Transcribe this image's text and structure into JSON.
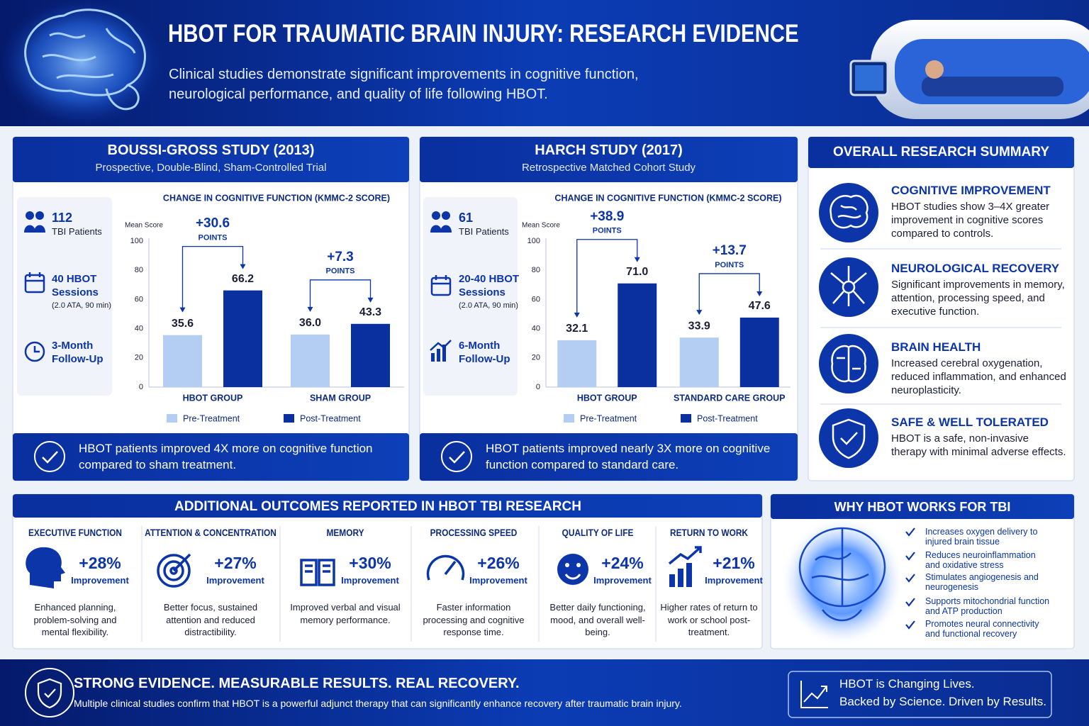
{
  "header": {
    "title": "HBOT FOR TRAUMATIC BRAIN INJURY: RESEARCH EVIDENCE",
    "subtitle": [
      "Clinical studies demonstrate significant improvements in cognitive function,",
      "neurological performance, and quality of life following HBOT."
    ]
  },
  "studies": [
    {
      "title": "BOUSSI-GROSS STUDY (2013)",
      "subtitle": "Prospective, Double-Blind, Sham-Controlled Trial",
      "facts": [
        {
          "main": "112",
          "sub": "TBI Patients"
        },
        {
          "main": "40 HBOT Sessions",
          "sub": "(2.0 ATA, 90 min)"
        },
        {
          "main": "3-Month Follow-Up"
        }
      ],
      "conclusion": "HBOT patients improved 4X more on cognitive function compared to sham treatment."
    },
    {
      "title": "HARCH STUDY (2017)",
      "subtitle": "Retrospective Matched Cohort Study",
      "facts": [
        {
          "main": "61",
          "sub": "TBI Patients"
        },
        {
          "main": "20-40 HBOT Sessions",
          "sub": "(2.0 ATA, 90 min)"
        },
        {
          "main": "6-Month Follow-Up"
        }
      ],
      "conclusion": "HBOT patients improved nearly 3X more on cognitive function compared to standard care."
    }
  ],
  "chart_data": [
    {
      "type": "bar",
      "title": "CHANGE IN COGNITIVE FUNCTION (KMMC-2 SCORE)",
      "y_label": "Mean Score",
      "categories": [
        "HBOT GROUP",
        "SHAM GROUP"
      ],
      "series": [
        {
          "name": "Pre-Treatment",
          "color": "#b4cdf2",
          "values": [
            35.6,
            36.0
          ],
          "value_labels": [
            "35.6",
            "36.0"
          ]
        },
        {
          "name": "Post-Treatment",
          "color": "#0a2f9e",
          "values": [
            66.2,
            43.3
          ],
          "value_labels": [
            "66.2",
            "43.3"
          ]
        }
      ],
      "annotations": [
        {
          "label": "+30.6",
          "text": "POINTS"
        },
        {
          "label": "+7.3",
          "text": "POINTS"
        }
      ],
      "ylim": [
        0,
        100
      ],
      "yticks": [
        0,
        20,
        40,
        60,
        80,
        100
      ],
      "grid": false
    },
    {
      "type": "bar",
      "title": "CHANGE IN COGNITIVE FUNCTION (KMMC-2 SCORE)",
      "y_label": "Mean Score",
      "categories": [
        "HBOT GROUP",
        "STANDARD CARE GROUP"
      ],
      "series": [
        {
          "name": "Pre-Treatment",
          "color": "#b4cdf2",
          "values": [
            32.1,
            33.9
          ],
          "value_labels": [
            "32.1",
            "33.9"
          ]
        },
        {
          "name": "Post-Treatment",
          "color": "#0a2f9e",
          "values": [
            71.0,
            47.6
          ],
          "value_labels": [
            "71.0",
            "47.6"
          ]
        }
      ],
      "annotations": [
        {
          "label": "+38.9",
          "text": "POINTS"
        },
        {
          "label": "+13.7",
          "text": "POINTS"
        }
      ],
      "ylim": [
        0,
        100
      ],
      "yticks": [
        0,
        20,
        40,
        60,
        80,
        100
      ],
      "grid": false
    }
  ],
  "summary": {
    "title": "OVERALL RESEARCH SUMMARY",
    "items": [
      {
        "title": "COGNITIVE IMPROVEMENT",
        "text": "HBOT studies show 3–4X greater improvement in cognitive scores compared to controls."
      },
      {
        "title": "NEUROLOGICAL RECOVERY",
        "text": "Significant improvements in memory, attention, processing speed, and executive function."
      },
      {
        "title": "BRAIN HEALTH",
        "text": "Increased cerebral oxygenation, reduced inflammation, and enhanced neuroplasticity."
      },
      {
        "title": "SAFE & WELL TOLERATED",
        "text": "HBOT is a safe, non-invasive therapy with minimal adverse effects."
      }
    ]
  },
  "outcomes": {
    "title": "ADDITIONAL OUTCOMES REPORTED IN HBOT TBI RESEARCH",
    "items": [
      {
        "title": "EXECUTIVE FUNCTION",
        "value": "+28%",
        "unit": "Improvement",
        "text": "Enhanced planning, problem-solving and mental flexibility."
      },
      {
        "title": "ATTENTION & CONCENTRATION",
        "value": "+27%",
        "unit": "Improvement",
        "text": "Better focus, sustained attention and reduced distractibility."
      },
      {
        "title": "MEMORY",
        "value": "+30%",
        "unit": "Improvement",
        "text": "Improved verbal and visual memory performance."
      },
      {
        "title": "PROCESSING SPEED",
        "value": "+26%",
        "unit": "Improvement",
        "text": "Faster information processing and cognitive response time."
      },
      {
        "title": "QUALITY OF LIFE",
        "value": "+24%",
        "unit": "Improvement",
        "text": "Better daily functioning, mood, and overall well-being."
      },
      {
        "title": "RETURN TO WORK",
        "value": "+21%",
        "unit": "Improvement",
        "text": "Higher rates of return to work or school post-treatment."
      }
    ]
  },
  "why": {
    "title": "WHY HBOT WORKS FOR TBI",
    "items": [
      "Increases oxygen delivery to injured brain tissue",
      "Reduces neuroinflammation and oxidative stress",
      "Stimulates angiogenesis and neurogenesis",
      "Supports mitochondrial function and ATP production",
      "Promotes neural connectivity and functional recovery"
    ]
  },
  "footer": {
    "headline": "STRONG EVIDENCE. MEASURABLE RESULTS. REAL RECOVERY.",
    "text": "Multiple clinical studies confirm that HBOT is a powerful adjunct therapy that can significantly enhance recovery after traumatic brain injury.",
    "badge": [
      "HBOT is Changing Lives.",
      "Backed by Science. Driven by Results."
    ]
  }
}
